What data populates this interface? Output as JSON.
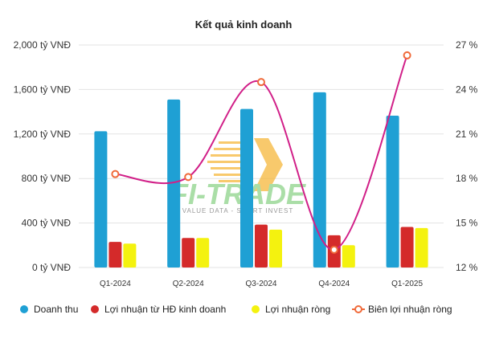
{
  "chart_data": {
    "type": "bar",
    "title": "Kết quả kinh doanh",
    "categories": [
      "Q1-2024",
      "Q2-2024",
      "Q3-2024",
      "Q4-2024",
      "Q1-2025"
    ],
    "y_left": {
      "ylim": [
        0,
        2000
      ],
      "ticks": [
        0,
        400,
        800,
        1200,
        1600,
        2000
      ],
      "tick_labels": [
        "0 tỷ VNĐ",
        "400 tỷ VNĐ",
        "800 tỷ VNĐ",
        "1,200 tỷ VNĐ",
        "1,600 tỷ VNĐ",
        "2,000 tỷ VNĐ"
      ]
    },
    "y_right": {
      "ylim": [
        12,
        27
      ],
      "ticks": [
        12,
        15,
        18,
        21,
        24,
        27
      ],
      "tick_labels": [
        "12 %",
        "15 %",
        "18 %",
        "21 %",
        "24 %",
        "27 %"
      ]
    },
    "series": [
      {
        "name": "Doanh thu",
        "type": "bar",
        "axis": "left",
        "color": "#1fa0d4",
        "values": [
          1225,
          1510,
          1425,
          1575,
          1365
        ]
      },
      {
        "name": "Lợi nhuận từ HĐ kinh doanh",
        "type": "bar",
        "axis": "left",
        "color": "#d42a2a",
        "values": [
          230,
          265,
          385,
          290,
          365
        ]
      },
      {
        "name": "Lợi nhuận ròng",
        "type": "bar",
        "axis": "left",
        "color": "#f4f20f",
        "values": [
          215,
          265,
          340,
          200,
          355
        ]
      },
      {
        "name": "Biên lợi nhuận ròng",
        "type": "line",
        "axis": "right",
        "color": "#d11f88",
        "marker_color": "#f06a3a",
        "values": [
          18.3,
          18.1,
          24.5,
          13.2,
          26.3
        ]
      }
    ],
    "grid": true,
    "legend_position": "bottom",
    "xlabel": "",
    "ylabel": ""
  },
  "watermark": {
    "brand": "FI-TRADE",
    "tagline": "VALUE DATA - SMART INVEST"
  }
}
